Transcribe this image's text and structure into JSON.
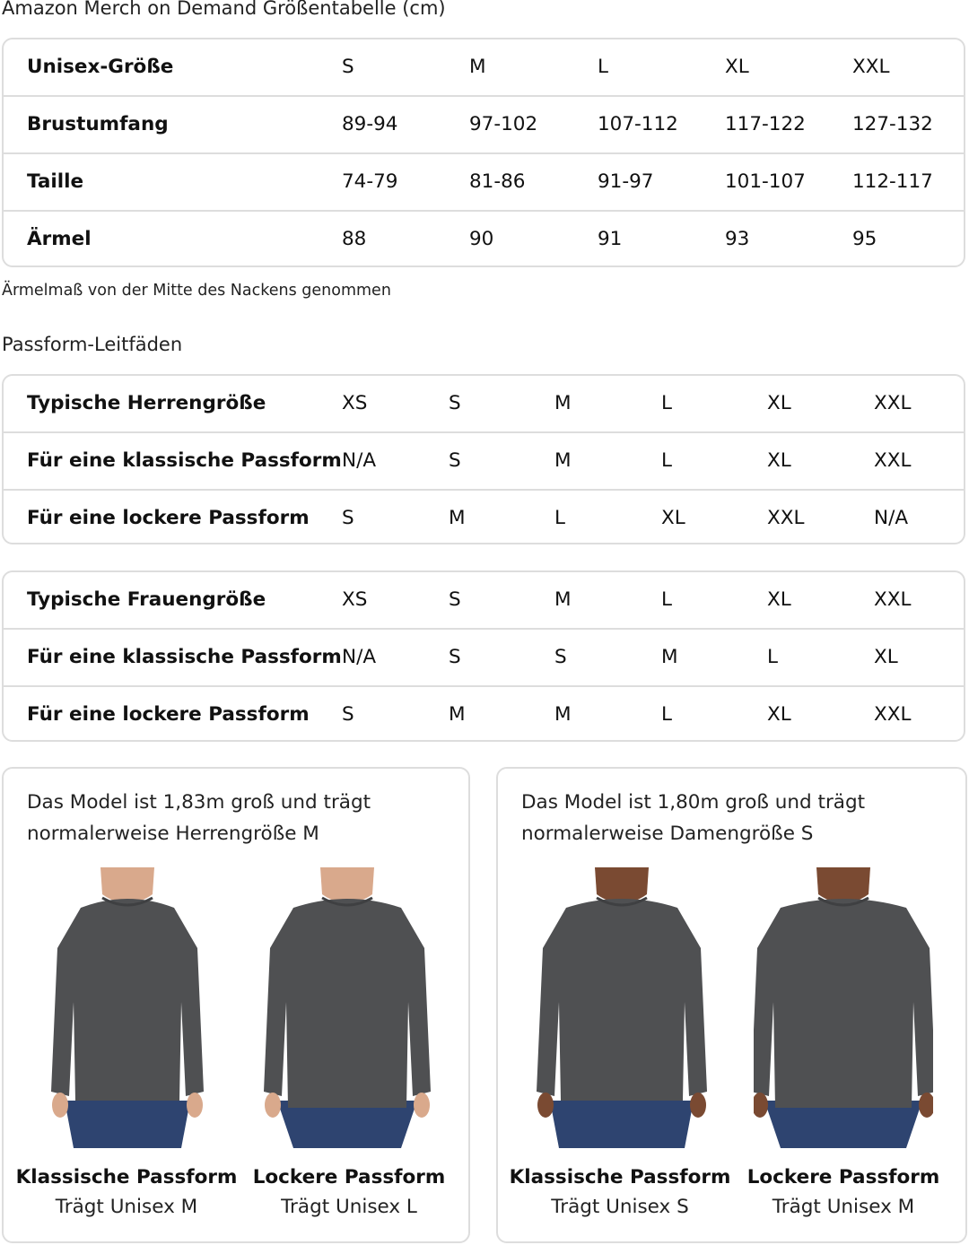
{
  "title": "Amazon Merch on Demand Größentabelle (cm)",
  "size_table": {
    "rows": [
      [
        "Unisex-Größe",
        "S",
        "M",
        "L",
        "XL",
        "XXL"
      ],
      [
        "Brustumfang",
        "89-94",
        "97-102",
        "107-112",
        "117-122",
        "127-132"
      ],
      [
        "Taille",
        "74-79",
        "81-86",
        "91-97",
        "101-107",
        "112-117"
      ],
      [
        "Ärmel",
        "88",
        "90",
        "91",
        "93",
        "95"
      ]
    ]
  },
  "note": "Ärmelmaß von der Mitte des Nackens genommen",
  "fit_heading": "Passform-Leitfäden",
  "men_table": {
    "rows": [
      [
        "Typische Herrengröße",
        "XS",
        "S",
        "M",
        "L",
        "XL",
        "XXL"
      ],
      [
        "Für eine klassische Passform",
        "N/A",
        "S",
        "M",
        "L",
        "XL",
        "XXL"
      ],
      [
        "Für eine lockere Passform",
        "S",
        "M",
        "L",
        "XL",
        "XXL",
        "N/A"
      ]
    ]
  },
  "women_table": {
    "rows": [
      [
        "Typische Frauengröße",
        "XS",
        "S",
        "M",
        "L",
        "XL",
        "XXL"
      ],
      [
        "Für eine klassische Passform",
        "N/A",
        "S",
        "S",
        "M",
        "L",
        "XL"
      ],
      [
        "Für eine lockere Passform",
        "S",
        "M",
        "M",
        "L",
        "XL",
        "XXL"
      ]
    ]
  },
  "cards": [
    {
      "desc_line1": "Das Model ist 1,83m groß und trägt",
      "desc_line2": "normalerweise Herrengröße M",
      "figures": [
        {
          "fit": "Klassische Passform",
          "wears": "Trägt Unisex M"
        },
        {
          "fit": "Lockere Passform",
          "wears": "Trägt Unisex L"
        }
      ]
    },
    {
      "desc_line1": "Das Model ist 1,80m groß und trägt",
      "desc_line2": "normalerweise Damengröße S",
      "figures": [
        {
          "fit": "Klassische Passform",
          "wears": "Trägt Unisex S"
        },
        {
          "fit": "Lockere Passform",
          "wears": "Trägt Unisex M"
        }
      ]
    }
  ],
  "colors": {
    "shirt": "#4f5052",
    "jeans": "#2e4470",
    "skin_men": "#d9a98c",
    "skin_women": "#7a4a32",
    "border": "#dddddd"
  }
}
